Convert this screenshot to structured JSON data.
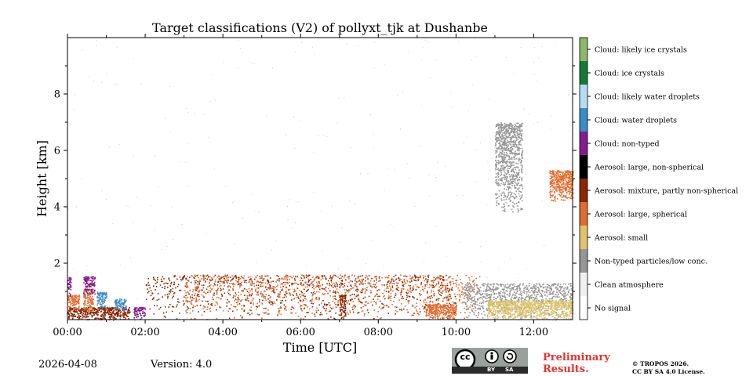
{
  "chart_data": {
    "type": "heatmap",
    "title": "Target classifications (V2) of pollyxt_tjk at Dushanbe",
    "xlabel": "Time [UTC]",
    "ylabel": "Height [km]",
    "xlim": [
      0,
      13
    ],
    "ylim": [
      0,
      10
    ],
    "x_ticks": [
      {
        "value": 0,
        "label": "00:00"
      },
      {
        "value": 2,
        "label": "02:00"
      },
      {
        "value": 4,
        "label": "04:00"
      },
      {
        "value": 6,
        "label": "06:00"
      },
      {
        "value": 8,
        "label": "08:00"
      },
      {
        "value": 10,
        "label": "10:00"
      },
      {
        "value": 12,
        "label": "12:00"
      }
    ],
    "y_ticks": [
      {
        "value": 2,
        "label": "2"
      },
      {
        "value": 4,
        "label": "4"
      },
      {
        "value": 6,
        "label": "6"
      },
      {
        "value": 8,
        "label": "8"
      }
    ],
    "legend": [
      {
        "label": "No signal",
        "color": "#ffffff"
      },
      {
        "label": "Clean atmosphere",
        "color": "#f0f0f0"
      },
      {
        "label": "Non-typed particles/low conc.",
        "color": "#969696"
      },
      {
        "label": "Aerosol: small",
        "color": "#dfc46c"
      },
      {
        "label": "Aerosol: large, spherical",
        "color": "#e36c2e"
      },
      {
        "label": "Aerosol: mixture, partly non-spherical",
        "color": "#8b2704"
      },
      {
        "label": "Aerosol: large, non-spherical",
        "color": "#000000"
      },
      {
        "label": "Cloud: non-typed",
        "color": "#861b8c"
      },
      {
        "label": "Cloud: water droplets",
        "color": "#3a8bc9"
      },
      {
        "label": "Cloud: likely water droplets",
        "color": "#b5dcf5"
      },
      {
        "label": "Cloud: ice crystals",
        "color": "#177939"
      },
      {
        "label": "Cloud: likely ice crystals",
        "color": "#8bb86b"
      }
    ],
    "regions": [
      {
        "class": "Aerosol: mixture, partly non-spherical",
        "t_start": 0.0,
        "t_end": 1.6,
        "h_start": 0.0,
        "h_end": 0.45
      },
      {
        "class": "Aerosol: large, spherical",
        "t_start": 0.0,
        "t_end": 0.3,
        "h_start": 0.3,
        "h_end": 0.9
      },
      {
        "class": "Aerosol: large, spherical",
        "t_start": 0.4,
        "t_end": 0.65,
        "h_start": 0.3,
        "h_end": 1.1
      },
      {
        "class": "Cloud: non-typed",
        "t_start": 0.0,
        "t_end": 0.08,
        "h_start": 0.8,
        "h_end": 1.55
      },
      {
        "class": "Cloud: non-typed",
        "t_start": 0.4,
        "t_end": 0.7,
        "h_start": 0.9,
        "h_end": 1.55
      },
      {
        "class": "Cloud: water droplets",
        "t_start": 0.75,
        "t_end": 1.0,
        "h_start": 0.4,
        "h_end": 1.0
      },
      {
        "class": "Cloud: water droplets",
        "t_start": 1.2,
        "t_end": 1.5,
        "h_start": 0.3,
        "h_end": 0.75
      },
      {
        "class": "Cloud: non-typed",
        "t_start": 1.7,
        "t_end": 2.0,
        "h_start": 0.0,
        "h_end": 0.45
      },
      {
        "class": "Aerosol: mixture, partly non-spherical",
        "t_start": 2.0,
        "t_end": 10.0,
        "h_start": 0.0,
        "h_end": 1.6
      },
      {
        "class": "Aerosol: large, spherical",
        "t_start": 3.0,
        "t_end": 10.6,
        "h_start": 0.0,
        "h_end": 1.6
      },
      {
        "class": "Aerosol: mixture, partly non-spherical",
        "t_start": 7.0,
        "t_end": 7.15,
        "h_start": 0.0,
        "h_end": 0.9
      },
      {
        "class": "Aerosol: large, spherical",
        "t_start": 9.2,
        "t_end": 10.0,
        "h_start": 0.0,
        "h_end": 0.55
      },
      {
        "class": "Non-typed particles/low conc.",
        "t_start": 10.2,
        "t_end": 13.0,
        "h_start": 0.0,
        "h_end": 1.3
      },
      {
        "class": "Aerosol: small",
        "t_start": 10.8,
        "t_end": 13.0,
        "h_start": 0.0,
        "h_end": 0.7
      },
      {
        "class": "Non-typed particles/low conc.",
        "t_start": 11.0,
        "t_end": 11.7,
        "h_start": 3.8,
        "h_end": 7.0
      },
      {
        "class": "Aerosol: large, spherical",
        "t_start": 12.4,
        "t_end": 13.0,
        "h_start": 4.2,
        "h_end": 5.3
      }
    ]
  },
  "footer": {
    "date": "2026-04-08",
    "version": "Version: 4.0",
    "preliminary_line1": "Preliminary",
    "preliminary_line2": "Results.",
    "copyright_line1": "© TROPOS 2026.",
    "copyright_line2": "CC BY SA 4.0 License.",
    "cc_badge": {
      "cc": "cc",
      "by": "BY",
      "sa": "SA"
    }
  }
}
